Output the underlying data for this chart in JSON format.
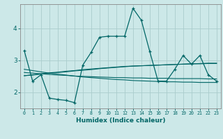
{
  "xlabel": "Humidex (Indice chaleur)",
  "bg_color": "#cce8e8",
  "grid_color": "#aacccc",
  "line_color": "#006666",
  "xlim": [
    -0.5,
    23.5
  ],
  "ylim": [
    1.5,
    4.75
  ],
  "yticks": [
    2,
    3,
    4
  ],
  "xticks": [
    0,
    1,
    2,
    3,
    4,
    5,
    6,
    7,
    8,
    9,
    10,
    11,
    12,
    13,
    14,
    15,
    16,
    17,
    18,
    19,
    20,
    21,
    22,
    23
  ],
  "main": [
    3.3,
    2.35,
    2.55,
    1.82,
    1.78,
    1.75,
    1.68,
    2.85,
    3.25,
    3.72,
    3.75,
    3.75,
    3.75,
    4.62,
    4.25,
    3.28,
    2.35,
    2.35,
    2.72,
    3.15,
    2.88,
    3.15,
    2.55,
    2.35
  ],
  "trend_down": [
    2.72,
    2.68,
    2.64,
    2.6,
    2.57,
    2.54,
    2.51,
    2.48,
    2.46,
    2.44,
    2.42,
    2.4,
    2.39,
    2.37,
    2.36,
    2.35,
    2.34,
    2.33,
    2.33,
    2.32,
    2.32,
    2.31,
    2.31,
    2.31
  ],
  "trend_up1": [
    2.52,
    2.55,
    2.58,
    2.61,
    2.63,
    2.66,
    2.68,
    2.71,
    2.73,
    2.75,
    2.77,
    2.79,
    2.81,
    2.82,
    2.83,
    2.84,
    2.85,
    2.86,
    2.87,
    2.88,
    2.89,
    2.89,
    2.9,
    2.9
  ],
  "trend_up2": [
    2.52,
    2.54,
    2.57,
    2.59,
    2.62,
    2.64,
    2.67,
    2.69,
    2.71,
    2.74,
    2.76,
    2.78,
    2.8,
    2.82,
    2.83,
    2.84,
    2.85,
    2.86,
    2.87,
    2.88,
    2.89,
    2.9,
    2.91,
    2.91
  ],
  "trend_flat": [
    2.62,
    2.6,
    2.58,
    2.56,
    2.54,
    2.53,
    2.51,
    2.5,
    2.49,
    2.48,
    2.47,
    2.46,
    2.46,
    2.45,
    2.45,
    2.44,
    2.44,
    2.44,
    2.43,
    2.43,
    2.43,
    2.43,
    2.42,
    2.42
  ]
}
